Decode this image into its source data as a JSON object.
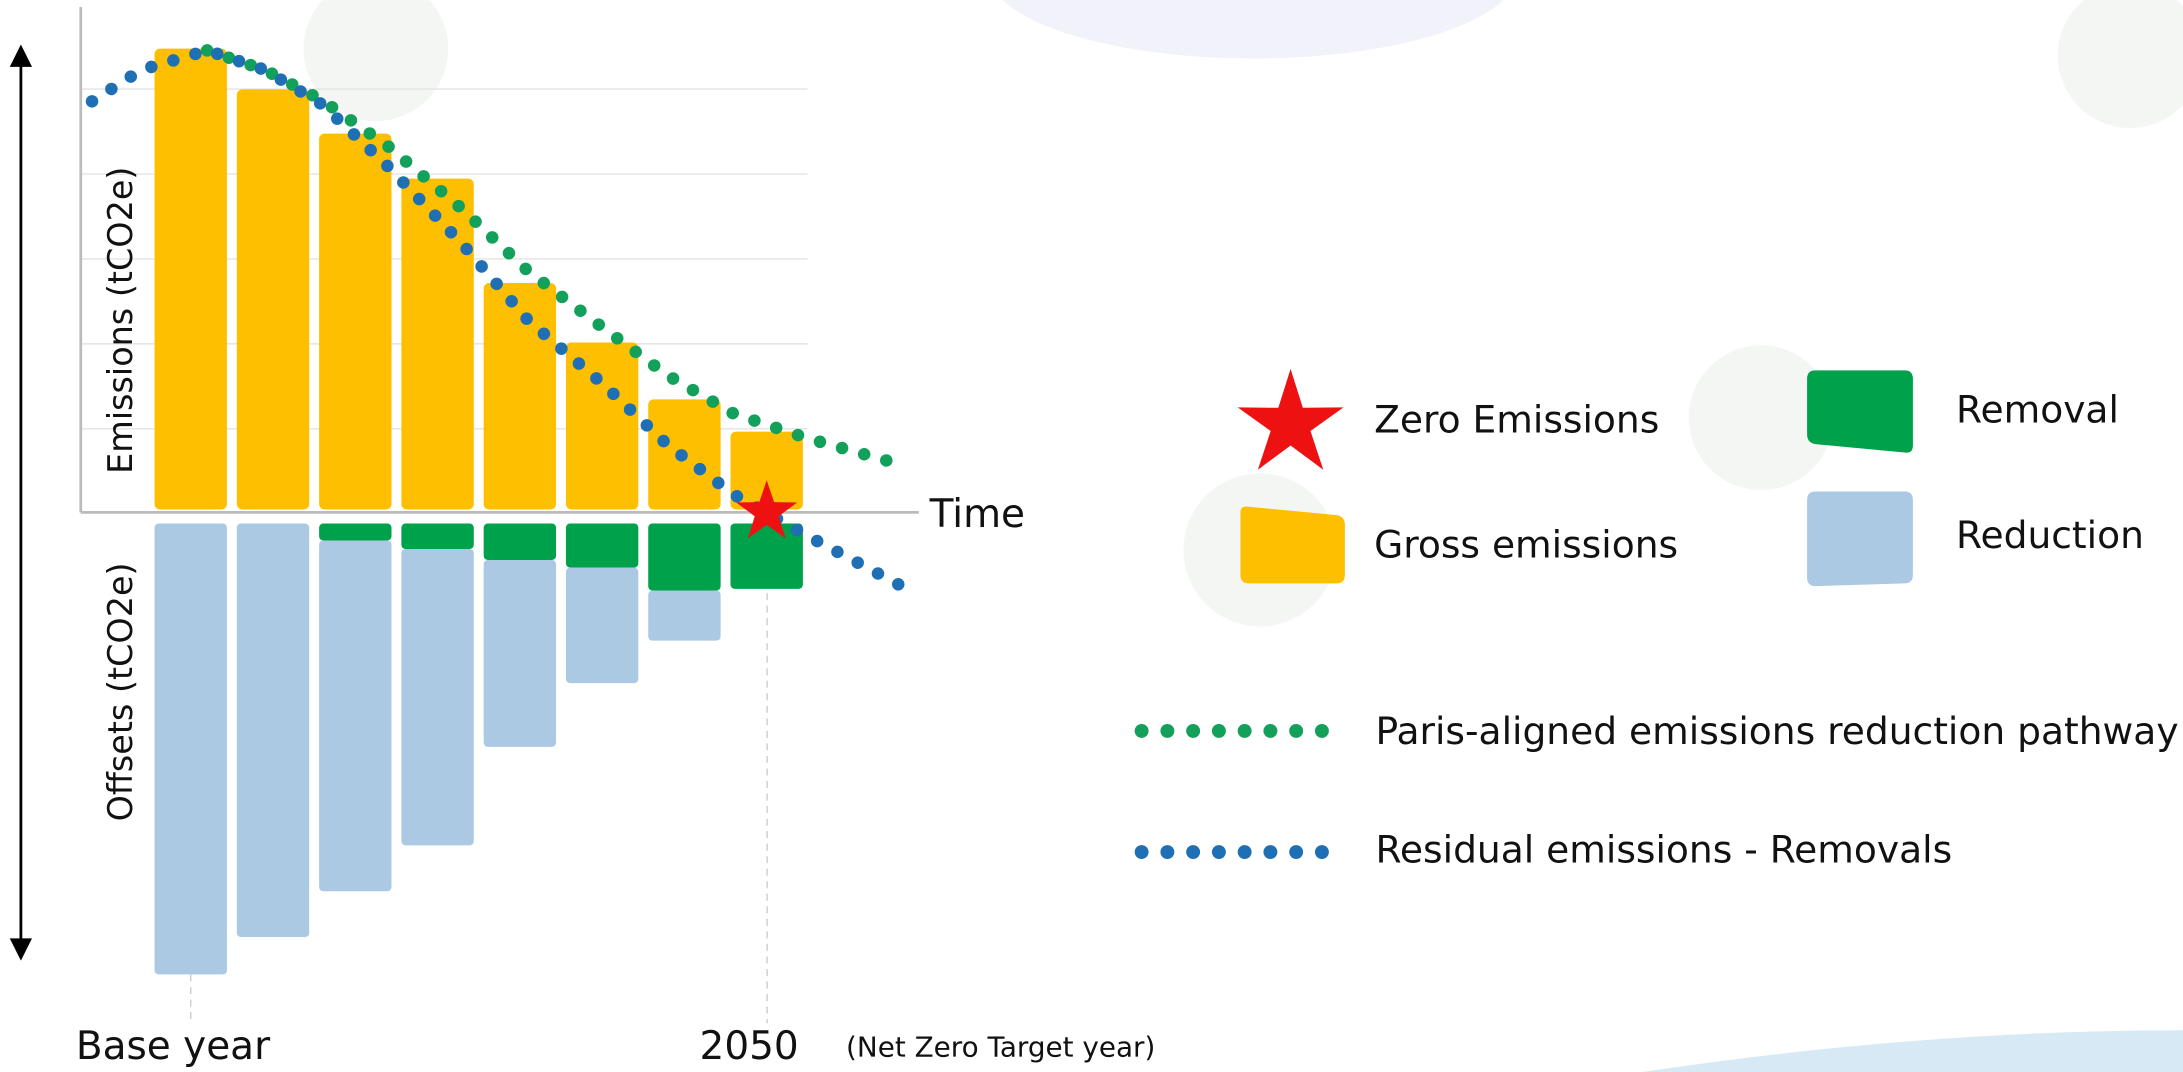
{
  "chart_data": {
    "type": "bar",
    "x_label": "Time",
    "y_label": "Emissions (tCO2e)",
    "y2_label": "Offsets (tCO2e)",
    "categories": [
      "Base year",
      null,
      null,
      null,
      null,
      null,
      null,
      "2050"
    ],
    "category_note": "(Net Zero Target year)",
    "series": [
      {
        "name": "Gross emissions",
        "color": "#fdbf00",
        "values": [
          5.46,
          4.98,
          4.46,
          3.93,
          2.7,
          2.0,
          1.33,
          0.95
        ]
      },
      {
        "name": "Removal",
        "color": "#00a14b",
        "values": [
          0,
          0,
          -0.2,
          -0.3,
          -0.43,
          -0.52,
          -0.79,
          -0.77
        ]
      },
      {
        "name": "Reduction",
        "color": "#abc9e3",
        "values": [
          -5.31,
          -4.87,
          -4.13,
          -3.49,
          -2.2,
          -1.36,
          -0.59,
          0
        ]
      }
    ],
    "lines": [
      {
        "name": "Paris-aligned emissions reduction pathway",
        "color": "#12a05a",
        "x": [
          0.2,
          0.9,
          1.6,
          2.4,
          3.3,
          4.1,
          5.0,
          5.8,
          6.6,
          7.5,
          8.6
        ],
        "values": [
          5.44,
          5.21,
          4.85,
          4.31,
          3.57,
          2.84,
          2.18,
          1.61,
          1.16,
          0.87,
          0.57
        ]
      },
      {
        "name": "Residual emissions - Removals",
        "color": "#1f6fb5",
        "x": [
          -1.2,
          -0.6,
          0.2,
          0.9,
          1.6,
          2.4,
          3.3,
          4.1,
          5.0,
          5.8,
          6.6,
          7.5,
          8.7
        ],
        "values": [
          4.84,
          5.21,
          5.44,
          5.21,
          4.8,
          4.07,
          3.16,
          2.26,
          1.52,
          0.79,
          0.21,
          -0.28,
          -0.9
        ]
      }
    ],
    "marker": {
      "name": "Zero Emissions",
      "color": "#ee1111",
      "x": 7,
      "y": 0
    }
  }
}
